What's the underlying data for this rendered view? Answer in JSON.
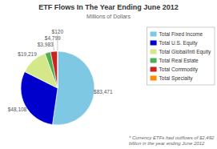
{
  "chart_data": {
    "type": "pie",
    "title": "ETF Flows In The Year Ending June 2012",
    "subtitle": "Millions of Dollars",
    "annotations": [
      "* Currency ETFs had outflows of $2,492\nbillion in the year ending June 2012"
    ],
    "categories": [
      "Total Fixed Income",
      "Total U.S. Equity",
      "Total Global/Intl Equity",
      "Total Real Estate",
      "Total Commodity",
      "Total Specialty"
    ],
    "values": [
      83471,
      48108,
      19219,
      3983,
      4799,
      120
    ],
    "value_labels": [
      "$83,471",
      "$48,108",
      "$19,219",
      "$3,983",
      "$4,799",
      "$120"
    ],
    "colors": [
      "#7ec8e3",
      "#0000cc",
      "#d4e88a",
      "#4caf50",
      "#cc2222",
      "#ff8c00"
    ],
    "data_labels": true,
    "legend": "upper right"
  }
}
